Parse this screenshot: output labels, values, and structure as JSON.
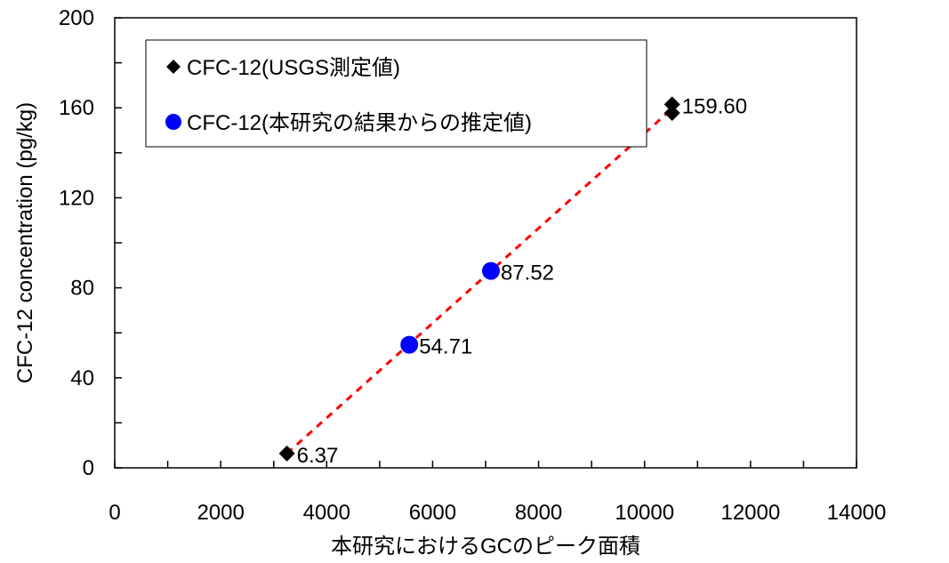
{
  "chart_data": {
    "type": "scatter",
    "xlabel": "本研究におけるGCのピーク面積",
    "ylabel": "CFC-12 concentration (pg/kg)",
    "xlim": [
      0,
      14000
    ],
    "ylim": [
      0,
      200
    ],
    "x_ticks": [
      "0",
      "2000",
      "4000",
      "6000",
      "8000",
      "10000",
      "12000",
      "14000"
    ],
    "y_ticks": [
      "0",
      "40",
      "80",
      "120",
      "160",
      "200"
    ],
    "grid": false,
    "legend_position": "top-left",
    "series": [
      {
        "name": "CFC-12(USGS測定値)",
        "marker": "diamond",
        "color": "#000000",
        "points": [
          {
            "x": 3250,
            "y": 6.37,
            "label": "6.37"
          },
          {
            "x": 10520,
            "y": 161.5,
            "label": "159.60"
          },
          {
            "x": 10520,
            "y": 157.7,
            "label": ""
          }
        ]
      },
      {
        "name": "CFC-12(本研究の結果からの推定値)",
        "marker": "circle",
        "color": "#0000ff",
        "points": [
          {
            "x": 5560,
            "y": 54.71,
            "label": "54.71"
          },
          {
            "x": 7100,
            "y": 87.52,
            "label": "87.52"
          }
        ]
      }
    ],
    "trendline": {
      "color": "#ff0000",
      "style": "dashed",
      "x": [
        3250,
        10520
      ],
      "y": [
        6.37,
        159.6
      ]
    }
  }
}
